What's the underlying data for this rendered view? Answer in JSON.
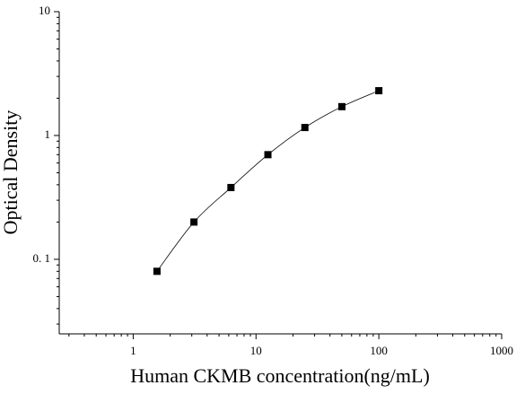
{
  "chart_data": {
    "type": "scatter",
    "x_label": "Human CKMB concentration(ng/mL)",
    "y_label": "Optical Density",
    "x": [
      1.5625,
      3.125,
      6.25,
      12.5,
      25,
      50,
      100
    ],
    "series": [
      {
        "values": [
          0.08,
          0.2,
          0.38,
          0.7,
          1.16,
          1.71,
          2.3
        ],
        "color": "#000000"
      }
    ],
    "xlim": [
      0.25,
      1000
    ],
    "ylim": [
      0.025,
      10
    ],
    "xticks": [
      1,
      10,
      100,
      1000
    ],
    "yticks": [
      {
        "value": 0.1,
        "label": "0. 1"
      },
      1,
      10
    ],
    "log_x": true,
    "log_y": true,
    "fit_curve": true
  }
}
